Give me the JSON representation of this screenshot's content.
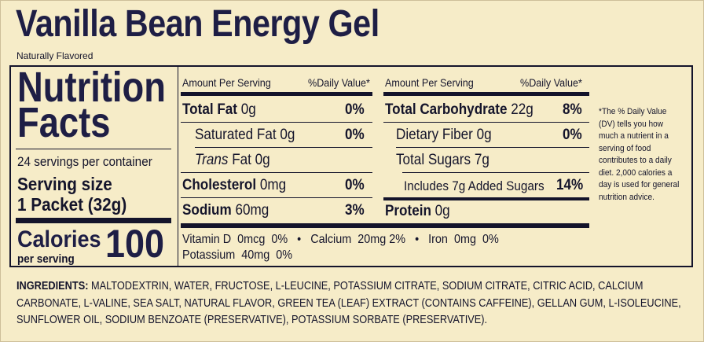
{
  "product": {
    "title": "Vanilla Bean Energy Gel",
    "subtitle": "Naturally Flavored"
  },
  "label": {
    "heading_line1": "Nutrition",
    "heading_line2": "Facts",
    "servings_per_container": "24 servings per container",
    "serving_size_label": "Serving size",
    "serving_size_value": "1 Packet (32g)",
    "calories_label": "Calories",
    "per_serving": "per serving",
    "calories_value": "100"
  },
  "left_table": {
    "header_amount": "Amount Per Serving",
    "header_dv": "%Daily Value*",
    "rows": [
      {
        "name": "Total Fat",
        "amount": "0g",
        "dv": "0%"
      },
      {
        "name": "Saturated Fat",
        "amount": "0g",
        "dv": "0%"
      },
      {
        "name_italic": "Trans",
        "name": "Fat",
        "amount": "0g",
        "dv": ""
      },
      {
        "name": "Cholesterol",
        "amount": "0mg",
        "dv": "0%"
      },
      {
        "name": "Sodium",
        "amount": "60mg",
        "dv": "3%"
      }
    ]
  },
  "right_table": {
    "header_amount": "Amount Per Serving",
    "header_dv": "%Daily Value*",
    "rows": [
      {
        "name": "Total Carbohydrate",
        "amount": "22g",
        "dv": "8%"
      },
      {
        "name": "Dietary Fiber",
        "amount": "0g",
        "dv": "0%"
      },
      {
        "name": "Total Sugars",
        "amount": "7g",
        "dv": ""
      },
      {
        "name": "Includes 7g Added Sugars",
        "amount": "",
        "dv": "14%"
      },
      {
        "name": "Protein",
        "amount": "0g",
        "dv": ""
      }
    ]
  },
  "vitamins": {
    "line1": "Vitamin D  0mcg  0%   •   Calcium  20mg 2%   •   Iron  0mg  0%",
    "line2": "Potassium  40mg  0%"
  },
  "footnote": "*The % Daily Value (DV) tells you how much a nutrient in a serving of food contributes to a daily diet. 2,000 calories a day is used for general nutrition advice.",
  "ingredients": {
    "label": "INGREDIENTS:",
    "text": "MALTODEXTRIN, WATER, FRUCTOSE, L-LEUCINE, POTASSIUM CITRATE, SODIUM CITRATE, CITRIC ACID, CALCIUM CARBONATE, L-VALINE, SEA SALT, NATURAL FLAVOR, GREEN TEA (LEAF) EXTRACT (CONTAINS CAFFEINE), GELLAN GUM, L-ISOLEUCINE, SUNFLOWER OIL, SODIUM BENZOATE (PRESERVATIVE), POTASSIUM SORBATE (PRESERVATIVE)."
  }
}
